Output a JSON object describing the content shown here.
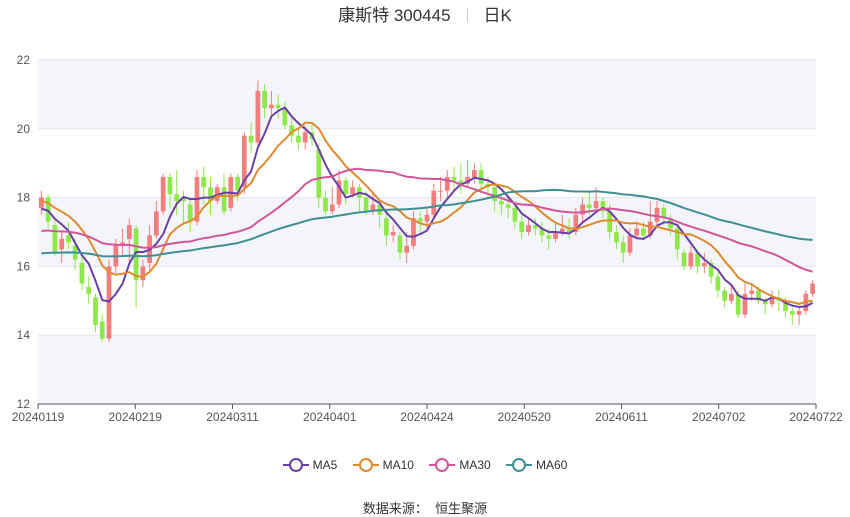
{
  "title": {
    "name": "康斯特 300445",
    "period": "日K"
  },
  "source_label": "数据来源：",
  "source_value": "恒生聚源",
  "chart_data": {
    "type": "candlestick",
    "ylim": [
      12,
      22
    ],
    "yticks": [
      12,
      14,
      16,
      18,
      20,
      22
    ],
    "x_labels": [
      "20240119",
      "20240219",
      "20240311",
      "20240401",
      "20240424",
      "20240520",
      "20240611",
      "20240702",
      "20240722"
    ],
    "grid": "horizontal, alternating bands",
    "up_color": "#f47d7d",
    "down_color": "#8ee84a",
    "candles": [
      [
        17.7,
        18.0,
        18.2,
        17.5
      ],
      [
        18.0,
        17.3,
        18.1,
        17.1
      ],
      [
        17.2,
        16.4,
        17.4,
        16.3
      ],
      [
        16.5,
        16.8,
        17.0,
        16.1
      ],
      [
        16.9,
        16.7,
        17.3,
        16.5
      ],
      [
        16.6,
        16.2,
        16.8,
        15.9
      ],
      [
        16.1,
        15.5,
        16.3,
        15.3
      ],
      [
        15.4,
        15.2,
        15.7,
        14.9
      ],
      [
        15.1,
        14.3,
        15.2,
        14.1
      ],
      [
        14.4,
        13.9,
        14.6,
        13.8
      ],
      [
        13.9,
        16.0,
        16.2,
        13.8
      ],
      [
        16.0,
        16.6,
        16.8,
        15.8
      ],
      [
        16.6,
        16.7,
        17.1,
        16.3
      ],
      [
        16.8,
        17.2,
        17.4,
        16.1
      ],
      [
        17.1,
        15.6,
        17.2,
        14.8
      ],
      [
        15.6,
        16.0,
        16.2,
        15.4
      ],
      [
        16.1,
        16.9,
        17.2,
        15.9
      ],
      [
        16.9,
        17.6,
        17.9,
        16.8
      ],
      [
        17.6,
        18.6,
        18.7,
        17.5
      ],
      [
        18.6,
        18.1,
        18.7,
        17.7
      ],
      [
        18.1,
        17.9,
        18.8,
        17.5
      ],
      [
        18.0,
        17.9,
        18.2,
        17.2
      ],
      [
        17.8,
        17.3,
        18.0,
        17.0
      ],
      [
        17.3,
        18.6,
        18.8,
        17.2
      ],
      [
        18.6,
        18.3,
        18.9,
        17.8
      ],
      [
        18.3,
        17.9,
        18.6,
        17.5
      ],
      [
        17.9,
        18.3,
        18.4,
        17.8
      ],
      [
        18.3,
        17.6,
        18.7,
        17.5
      ],
      [
        17.7,
        18.6,
        18.7,
        17.6
      ],
      [
        18.6,
        18.2,
        18.7,
        17.9
      ],
      [
        18.3,
        19.8,
        19.9,
        18.1
      ],
      [
        19.8,
        19.6,
        20.2,
        19.3
      ],
      [
        19.6,
        21.1,
        21.4,
        19.5
      ],
      [
        21.1,
        20.6,
        21.3,
        20.3
      ],
      [
        20.6,
        20.7,
        21.1,
        20.4
      ],
      [
        20.7,
        20.6,
        21.0,
        20.3
      ],
      [
        20.6,
        20.1,
        20.8,
        20.0
      ],
      [
        20.1,
        19.8,
        20.3,
        19.6
      ],
      [
        19.8,
        19.6,
        20.0,
        19.4
      ],
      [
        19.6,
        19.9,
        20.1,
        19.4
      ],
      [
        19.9,
        19.7,
        20.2,
        19.5
      ],
      [
        19.4,
        18.0,
        19.6,
        17.7
      ],
      [
        18.0,
        17.6,
        18.2,
        17.5
      ],
      [
        17.6,
        17.8,
        18.3,
        17.5
      ],
      [
        17.8,
        18.5,
        18.8,
        17.7
      ],
      [
        18.5,
        18.1,
        18.6,
        17.8
      ],
      [
        18.1,
        18.3,
        18.5,
        18.0
      ],
      [
        18.3,
        18.0,
        18.4,
        17.6
      ],
      [
        18.0,
        17.6,
        18.2,
        17.5
      ],
      [
        17.6,
        17.8,
        18.1,
        17.5
      ],
      [
        17.8,
        17.5,
        17.9,
        17.1
      ],
      [
        17.4,
        16.9,
        17.6,
        16.6
      ],
      [
        16.9,
        17.0,
        17.2,
        16.7
      ],
      [
        16.9,
        16.4,
        17.0,
        16.2
      ],
      [
        16.4,
        16.6,
        17.0,
        16.1
      ],
      [
        16.6,
        17.4,
        17.6,
        16.5
      ],
      [
        17.4,
        17.3,
        17.6,
        16.9
      ],
      [
        17.3,
        17.5,
        17.7,
        17.1
      ],
      [
        17.5,
        18.2,
        18.4,
        17.4
      ],
      [
        18.2,
        18.2,
        18.6,
        17.9
      ],
      [
        18.2,
        18.6,
        18.8,
        18.0
      ],
      [
        18.6,
        18.5,
        18.9,
        18.2
      ],
      [
        18.5,
        18.4,
        19.0,
        18.1
      ],
      [
        18.4,
        18.6,
        19.1,
        18.3
      ],
      [
        18.6,
        18.8,
        19.0,
        18.4
      ],
      [
        18.8,
        18.4,
        19.0,
        18.2
      ],
      [
        18.4,
        18.3,
        18.6,
        18.0
      ],
      [
        18.3,
        17.9,
        18.4,
        17.6
      ],
      [
        17.9,
        17.8,
        18.1,
        17.5
      ],
      [
        17.8,
        17.7,
        18.0,
        17.4
      ],
      [
        17.7,
        17.3,
        17.9,
        17.1
      ],
      [
        17.3,
        17.0,
        17.5,
        16.8
      ],
      [
        17.0,
        17.2,
        17.4,
        16.9
      ],
      [
        17.2,
        17.1,
        17.4,
        16.9
      ],
      [
        17.1,
        16.9,
        17.3,
        16.7
      ],
      [
        16.9,
        16.8,
        17.1,
        16.5
      ],
      [
        16.8,
        17.0,
        17.3,
        16.7
      ],
      [
        17.0,
        17.1,
        17.5,
        16.9
      ],
      [
        17.1,
        17.0,
        17.4,
        16.8
      ],
      [
        17.0,
        17.5,
        17.7,
        16.9
      ],
      [
        17.5,
        17.8,
        18.0,
        17.3
      ],
      [
        17.8,
        17.7,
        18.2,
        17.5
      ],
      [
        17.7,
        17.9,
        18.3,
        17.6
      ],
      [
        17.9,
        17.6,
        18.0,
        17.4
      ],
      [
        17.6,
        17.0,
        17.8,
        16.8
      ],
      [
        17.0,
        16.7,
        17.2,
        16.5
      ],
      [
        16.7,
        16.4,
        16.9,
        16.1
      ],
      [
        16.4,
        16.9,
        17.1,
        16.3
      ],
      [
        16.9,
        17.1,
        17.3,
        16.8
      ],
      [
        17.1,
        16.9,
        17.3,
        16.8
      ],
      [
        16.9,
        17.3,
        17.9,
        16.8
      ],
      [
        17.3,
        17.7,
        17.9,
        17.2
      ],
      [
        17.7,
        17.4,
        17.8,
        17.2
      ],
      [
        17.4,
        17.1,
        17.5,
        16.9
      ],
      [
        17.1,
        16.5,
        17.2,
        16.2
      ],
      [
        16.4,
        16.0,
        16.5,
        15.9
      ],
      [
        16.0,
        16.4,
        16.6,
        15.9
      ],
      [
        16.4,
        16.0,
        16.5,
        15.8
      ],
      [
        16.0,
        16.1,
        16.4,
        15.8
      ],
      [
        16.1,
        15.7,
        16.2,
        15.5
      ],
      [
        15.7,
        15.3,
        15.9,
        15.1
      ],
      [
        15.3,
        15.0,
        15.4,
        14.8
      ],
      [
        15.0,
        15.2,
        15.5,
        14.9
      ],
      [
        15.2,
        14.6,
        15.3,
        14.5
      ],
      [
        14.6,
        15.2,
        15.5,
        14.5
      ],
      [
        15.2,
        15.3,
        15.5,
        15.0
      ],
      [
        15.3,
        15.0,
        15.4,
        14.9
      ],
      [
        15.0,
        14.9,
        15.1,
        14.6
      ],
      [
        14.9,
        15.1,
        15.3,
        14.8
      ],
      [
        15.1,
        15.0,
        15.3,
        14.7
      ],
      [
        15.0,
        14.7,
        15.1,
        14.5
      ],
      [
        14.7,
        14.6,
        14.8,
        14.3
      ],
      [
        14.6,
        14.7,
        14.8,
        14.3
      ],
      [
        14.7,
        15.2,
        15.3,
        14.6
      ],
      [
        15.2,
        15.5,
        15.6,
        15.1
      ]
    ],
    "series": [
      {
        "name": "MA5",
        "color": "#6a3fa8"
      },
      {
        "name": "MA10",
        "color": "#e08a2e"
      },
      {
        "name": "MA30",
        "color": "#d2559b"
      },
      {
        "name": "MA60",
        "color": "#3f8f97"
      }
    ]
  }
}
